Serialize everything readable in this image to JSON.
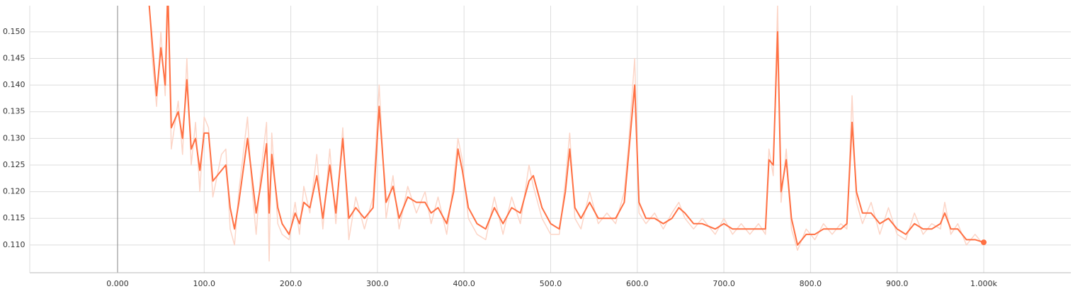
{
  "chart_data": {
    "type": "line",
    "x": [
      35,
      40,
      45,
      50,
      55,
      58,
      62,
      70,
      75,
      80,
      85,
      90,
      95,
      100,
      105,
      110,
      120,
      125,
      130,
      135,
      140,
      150,
      155,
      160,
      165,
      172,
      175,
      178,
      185,
      190,
      198,
      205,
      210,
      215,
      222,
      230,
      237,
      245,
      252,
      260,
      267,
      275,
      285,
      295,
      302,
      310,
      318,
      325,
      335,
      345,
      355,
      362,
      370,
      380,
      388,
      393,
      398,
      405,
      415,
      425,
      435,
      445,
      455,
      465,
      475,
      480,
      490,
      500,
      510,
      517,
      522,
      528,
      535,
      545,
      555,
      565,
      575,
      585,
      590,
      597,
      602,
      610,
      620,
      630,
      640,
      648,
      655,
      665,
      675,
      690,
      700,
      710,
      720,
      730,
      740,
      748,
      752,
      757,
      762,
      766,
      772,
      778,
      785,
      795,
      805,
      815,
      825,
      835,
      842,
      848,
      853,
      860,
      870,
      880,
      890,
      900,
      910,
      920,
      930,
      940,
      950,
      955,
      962,
      970,
      980,
      990,
      1000
    ],
    "series": [
      {
        "color": "#fcd5c7",
        "values": [
          0.16,
          0.145,
          0.136,
          0.15,
          0.138,
          0.162,
          0.128,
          0.137,
          0.127,
          0.145,
          0.125,
          0.133,
          0.12,
          0.134,
          0.132,
          0.119,
          0.127,
          0.128,
          0.113,
          0.11,
          0.12,
          0.134,
          0.121,
          0.112,
          0.123,
          0.133,
          0.107,
          0.131,
          0.114,
          0.112,
          0.111,
          0.118,
          0.112,
          0.121,
          0.116,
          0.127,
          0.113,
          0.128,
          0.114,
          0.132,
          0.111,
          0.119,
          0.113,
          0.119,
          0.14,
          0.115,
          0.123,
          0.113,
          0.121,
          0.116,
          0.12,
          0.114,
          0.119,
          0.112,
          0.122,
          0.13,
          0.126,
          0.115,
          0.112,
          0.111,
          0.119,
          0.112,
          0.119,
          0.114,
          0.125,
          0.121,
          0.115,
          0.112,
          0.112,
          0.122,
          0.131,
          0.115,
          0.113,
          0.12,
          0.114,
          0.116,
          0.114,
          0.12,
          0.129,
          0.145,
          0.116,
          0.114,
          0.116,
          0.113,
          0.116,
          0.118,
          0.115,
          0.113,
          0.115,
          0.112,
          0.115,
          0.112,
          0.114,
          0.112,
          0.114,
          0.112,
          0.128,
          0.123,
          0.155,
          0.118,
          0.128,
          0.113,
          0.109,
          0.113,
          0.111,
          0.114,
          0.112,
          0.114,
          0.113,
          0.138,
          0.118,
          0.114,
          0.118,
          0.112,
          0.117,
          0.112,
          0.111,
          0.116,
          0.112,
          0.114,
          0.113,
          0.118,
          0.112,
          0.114,
          0.11,
          0.112,
          0.11
        ]
      },
      {
        "color": "#ff7043",
        "values": [
          0.158,
          0.148,
          0.138,
          0.147,
          0.14,
          0.158,
          0.132,
          0.135,
          0.13,
          0.141,
          0.128,
          0.13,
          0.124,
          0.131,
          0.131,
          0.122,
          0.124,
          0.125,
          0.117,
          0.113,
          0.118,
          0.13,
          0.123,
          0.116,
          0.121,
          0.129,
          0.116,
          0.127,
          0.117,
          0.114,
          0.112,
          0.116,
          0.114,
          0.118,
          0.117,
          0.123,
          0.115,
          0.125,
          0.116,
          0.13,
          0.115,
          0.117,
          0.115,
          0.117,
          0.136,
          0.118,
          0.121,
          0.115,
          0.119,
          0.118,
          0.118,
          0.116,
          0.117,
          0.114,
          0.12,
          0.128,
          0.124,
          0.117,
          0.114,
          0.113,
          0.117,
          0.114,
          0.117,
          0.116,
          0.122,
          0.123,
          0.117,
          0.114,
          0.113,
          0.12,
          0.128,
          0.117,
          0.115,
          0.118,
          0.115,
          0.115,
          0.115,
          0.118,
          0.127,
          0.14,
          0.118,
          0.115,
          0.115,
          0.114,
          0.115,
          0.117,
          0.116,
          0.114,
          0.114,
          0.113,
          0.114,
          0.113,
          0.113,
          0.113,
          0.113,
          0.113,
          0.126,
          0.125,
          0.15,
          0.12,
          0.126,
          0.115,
          0.11,
          0.112,
          0.112,
          0.113,
          0.113,
          0.113,
          0.114,
          0.133,
          0.12,
          0.116,
          0.116,
          0.114,
          0.115,
          0.113,
          0.112,
          0.114,
          0.113,
          0.113,
          0.114,
          0.116,
          0.113,
          0.113,
          0.111,
          0.111,
          0.1105
        ]
      }
    ],
    "xlim": [
      -101.4,
      1100.6
    ],
    "xticks": [
      {
        "value": 0,
        "label": "0.000"
      },
      {
        "value": 100,
        "label": "100.0"
      },
      {
        "value": 200,
        "label": "200.0"
      },
      {
        "value": 300,
        "label": "300.0"
      },
      {
        "value": 400,
        "label": "400.0"
      },
      {
        "value": 500,
        "label": "500.0"
      },
      {
        "value": 600,
        "label": "600.0"
      },
      {
        "value": 700,
        "label": "700.0"
      },
      {
        "value": 800,
        "label": "800.0"
      },
      {
        "value": 900,
        "label": "900.0"
      },
      {
        "value": 1000,
        "label": "1.000k"
      }
    ],
    "ylim": [
      0.1048,
      0.1549
    ],
    "yticks": [
      {
        "value": 0.11,
        "label": "0.110"
      },
      0.115,
      {
        "value": 0.12,
        "label": "0.120"
      },
      0.125,
      {
        "value": 0.13,
        "label": "0.130"
      },
      0.135,
      {
        "value": 0.14,
        "label": "0.140"
      },
      0.145,
      {
        "value": 0.15,
        "label": "0.150"
      }
    ],
    "grid": true
  }
}
